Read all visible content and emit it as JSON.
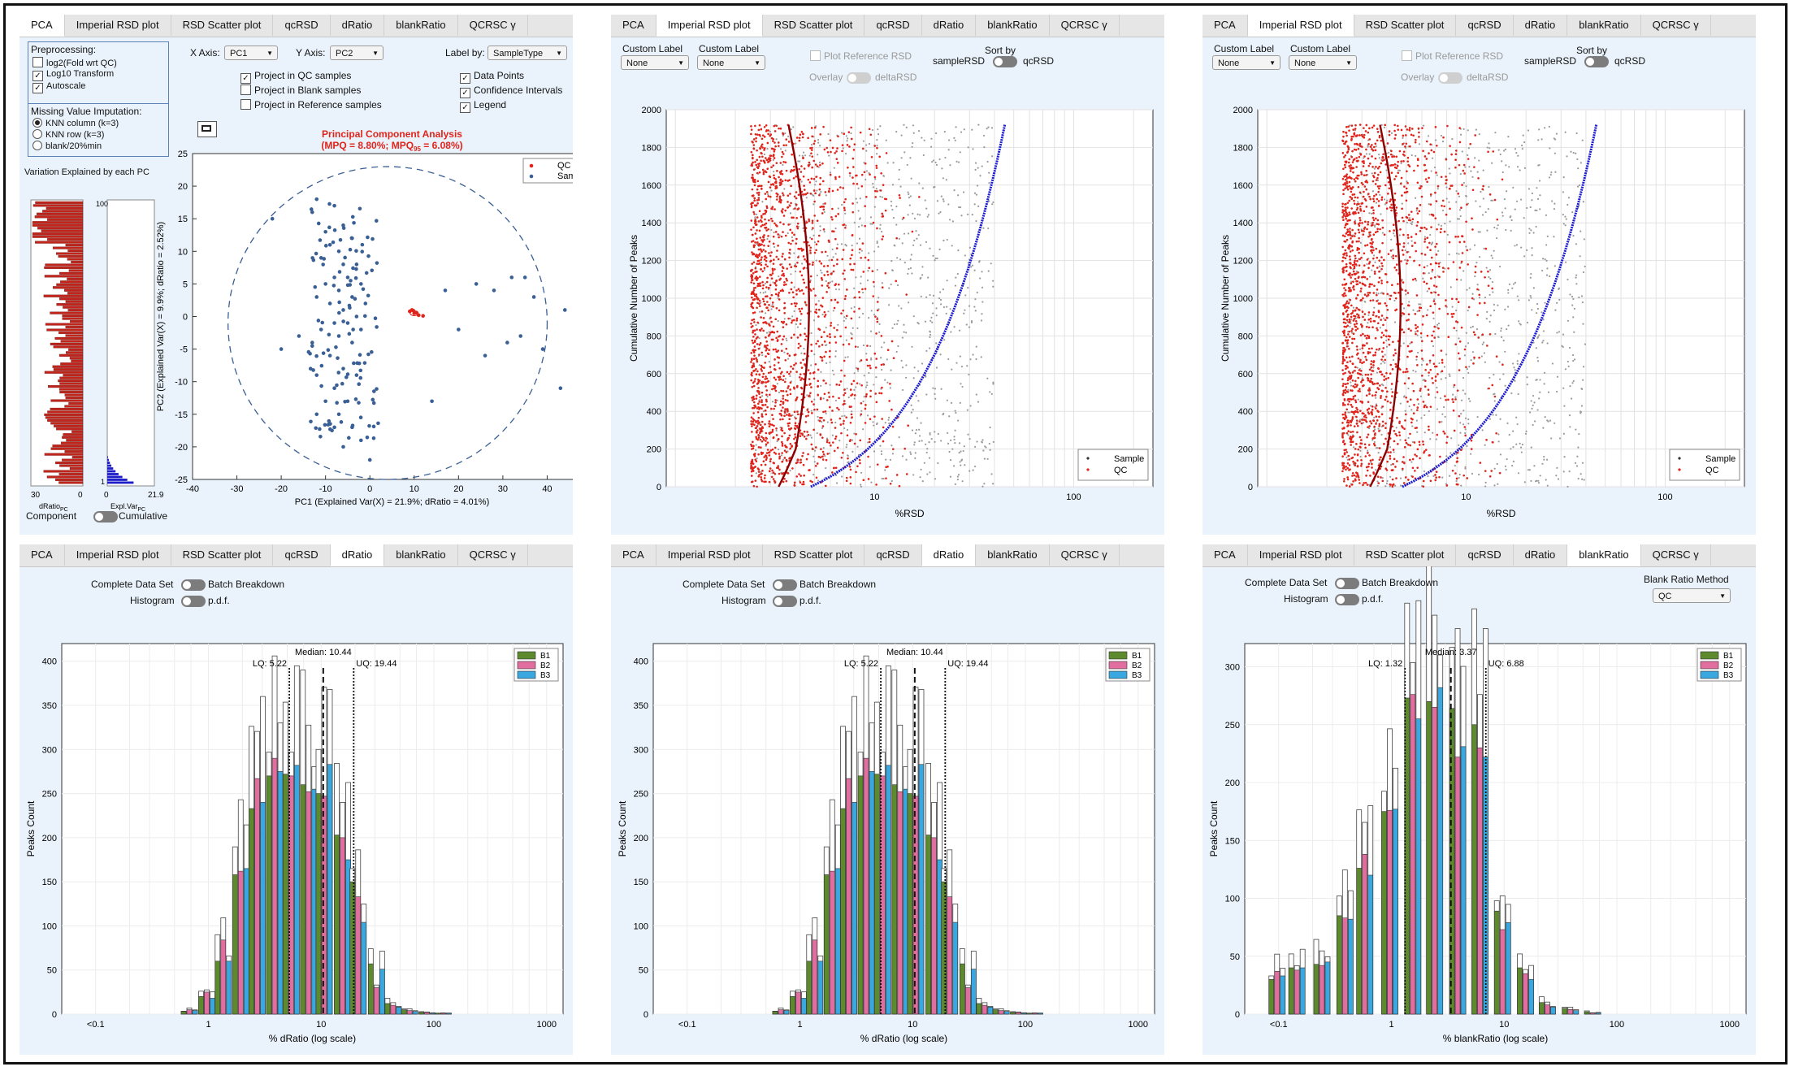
{
  "tabs": [
    "PCA",
    "Imperial RSD plot",
    "RSD Scatter plot",
    "qcRSD",
    "dRatio",
    "blankRatio",
    "QCRSC γ"
  ],
  "pca": {
    "preprocessing_title": "Preprocessing:",
    "pre_options": [
      {
        "label": "log2(Fold wrt QC)",
        "checked": false
      },
      {
        "label": "Log10 Transform",
        "checked": true
      },
      {
        "label": "Autoscale",
        "checked": true
      }
    ],
    "missing_title": "Missing Value Imputation:",
    "missing_options": [
      {
        "label": "KNN column (k=3)",
        "selected": true
      },
      {
        "label": "KNN row (k=3)",
        "selected": false
      },
      {
        "label": "blank/20%min",
        "selected": false
      }
    ],
    "x_axis_label": "X Axis:",
    "x_axis_value": "PC1",
    "y_axis_label": "Y Axis:",
    "y_axis_value": "PC2",
    "label_by_label": "Label by:",
    "label_by_value": "SampleType",
    "project_options": [
      {
        "label": "Project in QC samples",
        "checked": true
      },
      {
        "label": "Project in Blank samples",
        "checked": false
      },
      {
        "label": "Project in Reference samples",
        "checked": false
      }
    ],
    "display_options": [
      {
        "label": "Data Points",
        "checked": true
      },
      {
        "label": "Confidence Intervals",
        "checked": true
      },
      {
        "label": "Legend",
        "checked": true
      }
    ],
    "variation_title": "Variation Explained by each PC",
    "bar_left_ticks": [
      "30",
      "0"
    ],
    "bar_left_xlabel": "dRatio",
    "bar_left_xlabel_sub": "PC",
    "bar_right_ticks": [
      "0",
      "21.9"
    ],
    "bar_right_top": "100",
    "bar_right_bottom": "1",
    "bar_right_xlabel": "Expl.Var",
    "bar_right_xlabel_sub": "PC",
    "component_label": "Component",
    "cumulative_label": "Cumulative",
    "title_line1": "Principal Component Analysis",
    "title_line2": "(MPQ = 8.80%; MPQ",
    "title_sub": "95",
    "title_line2b": " = 6.08%)",
    "legend": [
      "QC",
      "Sample"
    ],
    "xlabel": "PC1 (Explained Var(X) = 21.9%; dRatio = 4.01%)",
    "ylabel": "PC2 (Explained Var(X) = 9.9%; dRatio = 2.52%)",
    "xticks": [
      "-40",
      "-30",
      "-20",
      "-10",
      "0",
      "10",
      "20",
      "30",
      "40",
      "50"
    ],
    "yticks": [
      "25",
      "20",
      "15",
      "10",
      "5",
      "0",
      "-5",
      "-10",
      "-15",
      "-20",
      "-25"
    ]
  },
  "rsd": {
    "custom_label_1": "Custom Label",
    "custom_value_1": "None",
    "custom_label_2": "Custom Label",
    "custom_value_2": "None",
    "plot_reference": "Plot Reference RSD",
    "overlay": "Overlay",
    "delta": "deltaRSD",
    "sort_by": "Sort by",
    "sort_left": "sampleRSD",
    "sort_right": "qcRSD",
    "ylabel": "Cumulative Number of Peaks",
    "xlabel": "%RSD",
    "yticks": [
      "2000",
      "1800",
      "1600",
      "1400",
      "1200",
      "1000",
      "800",
      "600",
      "400",
      "200",
      "0"
    ],
    "xticks": [
      "10",
      "100"
    ],
    "legend": [
      "Sample",
      "QC"
    ]
  },
  "dratio": {
    "complete": "Complete Data Set",
    "batch": "Batch Breakdown",
    "histogram": "Histogram",
    "pdf": "p.d.f.",
    "ylabel": "Peaks Count",
    "xlabel": "% dRatio (log scale)",
    "yticks": [
      "400",
      "350",
      "300",
      "250",
      "200",
      "150",
      "100",
      "50",
      "0"
    ],
    "xticks": [
      "<0.1",
      "1",
      "10",
      "100",
      "1000"
    ],
    "lq": "LQ: 5.22",
    "median": "Median: 10.44",
    "uq": "UQ: 19.44",
    "legend": [
      "B1",
      "B2",
      "B3"
    ]
  },
  "blank": {
    "complete": "Complete Data Set",
    "batch": "Batch Breakdown",
    "histogram": "Histogram",
    "pdf": "p.d.f.",
    "method_label": "Blank Ratio Method",
    "method_value": "QC",
    "ylabel": "Peaks Count",
    "xlabel": "% blankRatio (log scale)",
    "yticks": [
      "300",
      "250",
      "200",
      "150",
      "100",
      "50",
      "0"
    ],
    "xticks": [
      "<0.1",
      "1",
      "10",
      "100",
      "1000"
    ],
    "lq": "LQ: 1.32",
    "median": "Median: 3.37",
    "uq": "UQ: 6.88",
    "legend": [
      "B1",
      "B2",
      "B3"
    ]
  },
  "chart_data": [
    {
      "type": "scatter",
      "title": "Principal Component Analysis",
      "xlabel": "PC1 (Explained Var(X) = 21.9%; dRatio = 4.01%)",
      "ylabel": "PC2 (Explained Var(X) = 9.9%; dRatio = 2.52%)",
      "xlim": [
        -40,
        50
      ],
      "ylim": [
        -25,
        25
      ],
      "legend": "top-right",
      "series": [
        {
          "name": "QC",
          "points": [
            [
              9,
              0.8
            ],
            [
              10,
              0.5
            ],
            [
              9.5,
              1
            ],
            [
              10.5,
              0.6
            ],
            [
              11,
              0.2
            ],
            [
              9.8,
              0.9
            ],
            [
              12,
              0.1
            ]
          ]
        },
        {
          "name": "Sample",
          "points": [
            [
              -13,
              16
            ],
            [
              -12,
              18
            ],
            [
              -8,
              17
            ],
            [
              -10,
              13
            ],
            [
              -6,
              14
            ],
            [
              -9,
              11
            ],
            [
              -7,
              10
            ],
            [
              -4,
              12
            ],
            [
              -11,
              9
            ],
            [
              -6,
              8
            ],
            [
              -3,
              8
            ],
            [
              -8,
              6
            ],
            [
              -5,
              6
            ],
            [
              -10,
              5
            ],
            [
              -2,
              5
            ],
            [
              -7,
              4
            ],
            [
              -12,
              3
            ],
            [
              -4,
              3
            ],
            [
              -9,
              2
            ],
            [
              -6,
              1
            ],
            [
              -1,
              2
            ],
            [
              -3,
              0
            ],
            [
              -8,
              -1
            ],
            [
              -5,
              -1
            ],
            [
              -11,
              -2
            ],
            [
              -2,
              -2
            ],
            [
              -7,
              -3
            ],
            [
              -13,
              -4
            ],
            [
              -4,
              -4
            ],
            [
              -9,
              -6
            ],
            [
              -6,
              -8
            ],
            [
              -12,
              -9
            ],
            [
              -3,
              -9
            ],
            [
              -8,
              -11
            ],
            [
              -10,
              -13
            ],
            [
              -5,
              -13
            ],
            [
              -7,
              -15
            ],
            [
              -12,
              -15
            ],
            [
              -4,
              -17
            ],
            [
              -8,
              -17
            ],
            [
              -2,
              -19
            ],
            [
              -6,
              -20
            ],
            [
              0,
              -22
            ],
            [
              -22,
              15
            ],
            [
              -20,
              -5
            ],
            [
              -16,
              -3
            ],
            [
              17,
              4
            ],
            [
              20,
              -2
            ],
            [
              24,
              5
            ],
            [
              28,
              4
            ],
            [
              26,
              -6
            ],
            [
              31,
              -4
            ],
            [
              34,
              -3
            ],
            [
              37,
              3
            ],
            [
              39,
              -5
            ],
            [
              44,
              1
            ],
            [
              43,
              -11
            ],
            [
              48,
              -11
            ],
            [
              32,
              6
            ],
            [
              35,
              6
            ],
            [
              14,
              -13
            ]
          ]
        }
      ]
    },
    {
      "type": "scatter",
      "title": "",
      "xlabel": "%RSD",
      "ylabel": "Cumulative Number of Peaks",
      "xscale": "log",
      "ylim": [
        0,
        2000
      ],
      "legend": "bottom-right",
      "series": [
        {
          "name": "Sample"
        },
        {
          "name": "QC"
        }
      ]
    },
    {
      "type": "bar",
      "title": "",
      "xlabel": "% dRatio (log scale)",
      "ylabel": "Peaks Count",
      "xscale": "log",
      "ylim": [
        0,
        420
      ],
      "categories": [
        "0.7",
        "1",
        "1.4",
        "2",
        "2.8",
        "4",
        "5.6",
        "8",
        "11",
        "16",
        "22",
        "32",
        "45",
        "63",
        "90",
        "125"
      ],
      "series": [
        {
          "name": "B1",
          "values": [
            3,
            20,
            60,
            158,
            233,
            270,
            272,
            260,
            250,
            203,
            150,
            57,
            12,
            5,
            2,
            1
          ]
        },
        {
          "name": "B2",
          "values": [
            5,
            25,
            84,
            162,
            267,
            290,
            270,
            252,
            247,
            200,
            133,
            30,
            10,
            4,
            2,
            1
          ]
        },
        {
          "name": "B3",
          "values": [
            4,
            18,
            60,
            165,
            240,
            275,
            282,
            255,
            283,
            175,
            104,
            51,
            8,
            3,
            1,
            1
          ]
        }
      ],
      "quartiles": {
        "LQ": 5.22,
        "Median": 10.44,
        "UQ": 19.44
      }
    },
    {
      "type": "bar",
      "title": "",
      "xlabel": "% blankRatio (log scale)",
      "ylabel": "Peaks Count",
      "xscale": "log",
      "ylim": [
        0,
        320
      ],
      "categories": [
        "0.1",
        "0.15",
        "0.25",
        "0.4",
        "0.6",
        "1",
        "1.6",
        "2.5",
        "4",
        "6.3",
        "10",
        "16",
        "25",
        "40",
        "63"
      ],
      "series": [
        {
          "name": "B1",
          "values": [
            30,
            40,
            43,
            85,
            126,
            175,
            273,
            270,
            264,
            250,
            89,
            40,
            10,
            5,
            2
          ]
        },
        {
          "name": "B2",
          "values": [
            37,
            38,
            42,
            83,
            138,
            176,
            276,
            265,
            222,
            230,
            73,
            35,
            8,
            4,
            1
          ]
        },
        {
          "name": "B3",
          "values": [
            33,
            40,
            45,
            82,
            120,
            177,
            255,
            282,
            231,
            222,
            79,
            30,
            6,
            3,
            1
          ]
        }
      ],
      "quartiles": {
        "LQ": 1.32,
        "Median": 3.37,
        "UQ": 6.88
      }
    }
  ],
  "colors": {
    "qc": "#e0241b",
    "sample": "#3a5f95",
    "line": "#8b0000",
    "blue": "#1a1ad0",
    "b1": "#5e8a2e",
    "b2": "#e26ea0",
    "b3": "#39a8e0",
    "panel": "#eaf3fb"
  }
}
